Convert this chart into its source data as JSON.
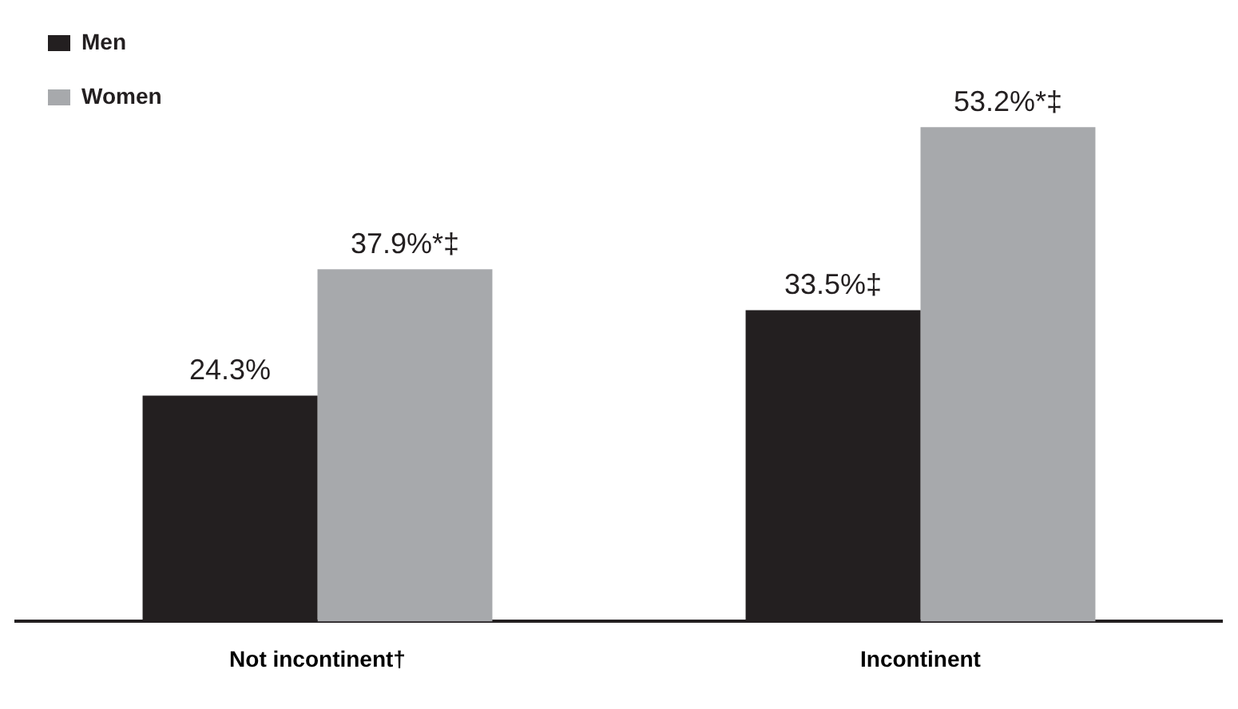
{
  "chart_data": {
    "type": "bar",
    "categories": [
      "Not incontinent†",
      "Incontinent"
    ],
    "series": [
      {
        "name": "Men",
        "color": "#231f20",
        "values": [
          24.3,
          33.5
        ],
        "value_labels": [
          "24.3%",
          "33.5%‡"
        ]
      },
      {
        "name": "Women",
        "color": "#a7a9ac",
        "values": [
          37.9,
          53.2
        ],
        "value_labels": [
          "37.9%*‡",
          "53.2%*‡"
        ]
      }
    ],
    "legend": "top left",
    "grid": false
  }
}
